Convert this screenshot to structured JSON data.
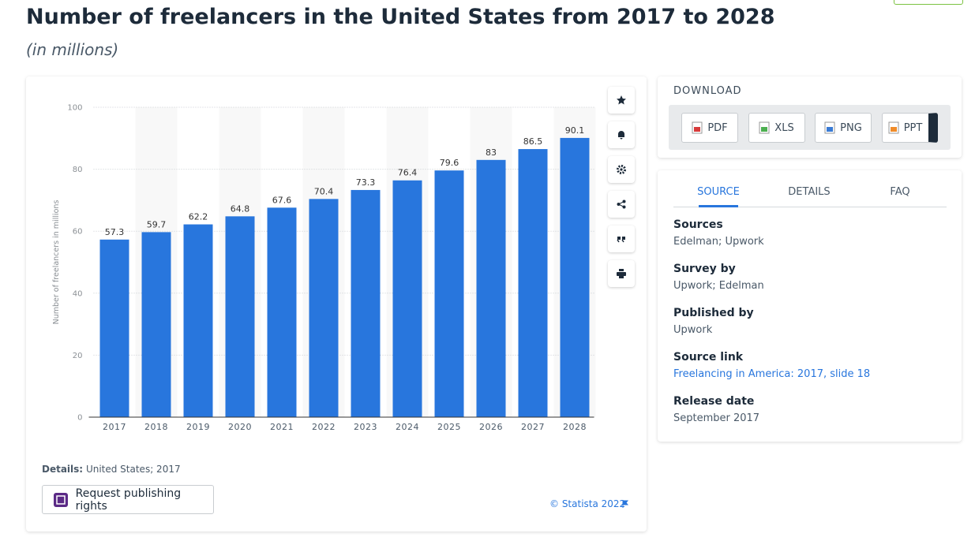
{
  "header": {
    "title": "Number of freelancers in the United States from 2017 to 2028",
    "subtitle": "(in millions)"
  },
  "chart_data": {
    "type": "bar",
    "y_label": "Number of freelancers in millions",
    "categories": [
      "2017",
      "2018",
      "2019",
      "2020",
      "2021",
      "2022",
      "2023",
      "2024",
      "2025",
      "2026",
      "2027",
      "2028"
    ],
    "values": [
      57.3,
      59.7,
      62.2,
      64.8,
      67.6,
      70.4,
      73.3,
      76.4,
      79.6,
      83,
      86.5,
      90.1
    ],
    "color": "#2876dd",
    "ylim": [
      0,
      100
    ],
    "yticks": [
      0,
      20,
      40,
      60,
      80,
      100
    ],
    "grid": true
  },
  "details": {
    "label": "Details:",
    "text": "United States; 2017"
  },
  "publish_button": "Request publishing rights",
  "copyright": "© Statista 2022",
  "download": {
    "title": "DOWNLOAD",
    "buttons": [
      "PDF",
      "XLS",
      "PNG",
      "PPT"
    ]
  },
  "tabs": [
    "SOURCE",
    "DETAILS",
    "FAQ"
  ],
  "sections": [
    {
      "heading": "Sources",
      "text": "Edelman; Upwork"
    },
    {
      "heading": "Survey by",
      "text": "Upwork; Edelman"
    },
    {
      "heading": "Published by",
      "text": "Upwork"
    },
    {
      "heading": "Source link",
      "text": "Freelancing in America: 2017, slide 18"
    },
    {
      "heading": "Release date",
      "text": "September 2017"
    }
  ]
}
